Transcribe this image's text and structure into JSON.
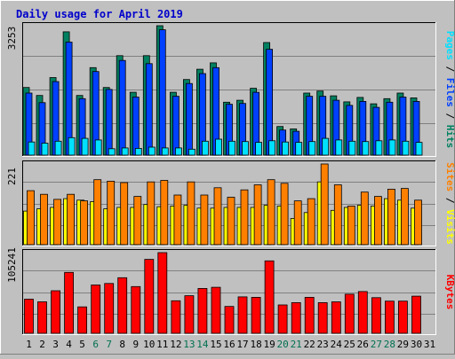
{
  "chart_data": {
    "type": "bar",
    "title": "Daily usage for April 2019",
    "days": [
      "1",
      "2",
      "3",
      "4",
      "5",
      "6",
      "7",
      "8",
      "9",
      "10",
      "11",
      "12",
      "13",
      "14",
      "15",
      "16",
      "17",
      "18",
      "19",
      "20",
      "21",
      "22",
      "23",
      "24",
      "25",
      "26",
      "27",
      "28",
      "29",
      "30",
      "31"
    ],
    "weekend_days": [
      "6",
      "7",
      "13",
      "14",
      "20",
      "21",
      "27",
      "28"
    ],
    "colors": {
      "background": "#c0c0c0",
      "title": "#0000cc",
      "hits": "#008060",
      "files": "#0040ff",
      "pages": "#00e0ff",
      "visits": "#ffff00",
      "sites": "#ff8000",
      "kbytes": "#ff0000",
      "weekend_label": "#007050",
      "grid": "#808080"
    },
    "panels": [
      {
        "id": "hits_panel",
        "max_label": "3253",
        "ymax": 3253,
        "labels": [
          "Pages",
          "Files",
          "Hits"
        ],
        "separator": " / ",
        "series": [
          {
            "name": "Hits",
            "color": "#008060",
            "values": [
              1700,
              1500,
              1950,
              3100,
              1500,
              2200,
              1700,
              2500,
              1580,
              2500,
              3253,
              1580,
              1900,
              2160,
              2320,
              1330,
              1380,
              1680,
              2830,
              720,
              660,
              1560,
              1610,
              1490,
              1340,
              1450,
              1290,
              1420,
              1560,
              1440,
              0
            ]
          },
          {
            "name": "Files",
            "color": "#0040ff",
            "values": [
              1560,
              1320,
              1850,
              2840,
              1420,
              2100,
              1650,
              2380,
              1460,
              2300,
              3150,
              1480,
              1800,
              2050,
              2200,
              1280,
              1300,
              1580,
              2660,
              630,
              600,
              1480,
              1480,
              1380,
              1250,
              1350,
              1200,
              1330,
              1460,
              1350,
              0
            ]
          },
          {
            "name": "Pages",
            "color": "#00e0ff",
            "values": [
              330,
              300,
              350,
              440,
              420,
              380,
              160,
              180,
              170,
              200,
              180,
              180,
              150,
              350,
              400,
              350,
              340,
              320,
              360,
              330,
              320,
              340,
              420,
              380,
              350,
              340,
              360,
              380,
              350,
              320,
              0
            ]
          }
        ]
      },
      {
        "id": "visits_panel",
        "max_label": "221",
        "ymax": 221,
        "labels": [
          "Sites",
          "Visits"
        ],
        "separator": " / ",
        "series": [
          {
            "name": "Visits",
            "color": "#ffff00",
            "values": [
              92,
              98,
              102,
              126,
              122,
              118,
              98,
              102,
              102,
              110,
              104,
              106,
              108,
              100,
              100,
              102,
              102,
              102,
              108,
              106,
              72,
              88,
              172,
              94,
              102,
              108,
              106,
              126,
              122,
              100,
              0
            ]
          },
          {
            "name": "Sites",
            "color": "#ff8000",
            "values": [
              148,
              138,
              124,
              138,
              120,
              178,
              174,
              170,
              132,
              172,
              176,
              136,
              172,
              136,
              156,
              130,
              150,
              164,
              178,
              168,
              120,
              126,
              221,
              164,
              106,
              144,
              132,
              152,
              154,
              122,
              0
            ]
          }
        ]
      },
      {
        "id": "kbytes_panel",
        "max_label": "105241",
        "ymax": 105241,
        "labels": [
          "KBytes"
        ],
        "separator": "",
        "series": [
          {
            "name": "KBytes",
            "color": "#ff0000",
            "values": [
              44500,
              41000,
              55500,
              79500,
              34500,
              63000,
              65000,
              72500,
              61000,
              96500,
              105241,
              42500,
              49000,
              58500,
              60000,
              35000,
              47500,
              47000,
              94500,
              37000,
              40000,
              47000,
              40000,
              41000,
              51000,
              54500,
              46500,
              42000,
              42000,
              48500,
              0
            ]
          }
        ]
      }
    ]
  }
}
